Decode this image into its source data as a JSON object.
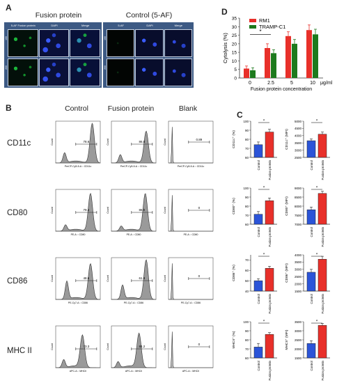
{
  "panel_a": {
    "letter": "A",
    "fusion_title": "Fusion protein",
    "control_title": "Control (5-AF)",
    "fusion_headers": [
      "5-AF Fusion protein",
      "DAPI",
      "Merge"
    ],
    "control_headers": [
      "5-AF",
      "DAPI",
      "Merge"
    ],
    "row_labels": [
      "100",
      "200"
    ]
  },
  "panel_b": {
    "letter": "B",
    "col_titles": [
      "Control",
      "Fusion protein",
      "Blank"
    ],
    "rows": [
      {
        "label": "CD11c",
        "xlabel": "PerCP-Cy5-5-A :: CD11c",
        "values": [
          "78.6",
          "86.5",
          "0.89"
        ]
      },
      {
        "label": "CD80",
        "xlabel": "PE-A :: CD80",
        "values": [
          "79.4",
          "88.0",
          "0"
        ]
      },
      {
        "label": "CD86",
        "xlabel": "PE-Cy7-A :: CD86",
        "values": [
          "48.6",
          "61.9",
          "0"
        ]
      },
      {
        "label": "MHC II",
        "xlabel": "APC-A :: MHCII",
        "values": [
          "73.3",
          "84.2",
          "0"
        ]
      }
    ],
    "ylabel": "Count"
  },
  "panel_c": {
    "letter": "C",
    "categories": [
      "Control",
      "Fusion protein"
    ],
    "colors": {
      "control": "#2b54d8",
      "fusion": "#e8302a"
    }
  },
  "panel_d": {
    "letter": "D"
  },
  "chart_data": [
    {
      "type": "bar",
      "categories": [
        "0",
        "2.5",
        "5",
        "10"
      ],
      "series": [
        {
          "name": "RM1",
          "values": [
            5.5,
            17.5,
            24.5,
            28.0
          ],
          "errors": [
            1.5,
            2.5,
            2.5,
            3.0
          ],
          "color": "#e8302a"
        },
        {
          "name": "TRAMP-C1",
          "values": [
            4.5,
            14.5,
            20.0,
            25.5
          ],
          "errors": [
            1.5,
            2.0,
            2.5,
            3.0
          ],
          "color": "#1d7a1d"
        }
      ],
      "ylabel": "Cytolysis (%)",
      "xlabel": "Fusion protein concentration",
      "unit": "μg/ml",
      "ylim": [
        0,
        35
      ],
      "yticks": [
        "0",
        "5",
        "10",
        "15",
        "20",
        "25",
        "30",
        "35"
      ],
      "annotation": "*"
    },
    {
      "type": "bar",
      "categories": [
        "Control",
        "Fusion protein"
      ],
      "values": [
        74,
        88
      ],
      "errors": [
        3,
        3
      ],
      "ylabel": "CD11c⁺ (%)",
      "ylim": [
        60,
        100
      ],
      "yticks": [
        "60",
        "70",
        "80",
        "90",
        "100"
      ],
      "annotation": "*"
    },
    {
      "type": "bar",
      "categories": [
        "Control",
        "Fusion protein"
      ],
      "values": [
        3650,
        4100
      ],
      "errors": [
        120,
        150
      ],
      "ylabel": "CD11c⁺ (MFI)",
      "ylim": [
        2500,
        5000
      ],
      "yticks": [
        "2500",
        "3000",
        "3500",
        "4000",
        "4500",
        "5000"
      ],
      "annotation": "*"
    },
    {
      "type": "bar",
      "categories": [
        "Control",
        "Fusion protein"
      ],
      "values": [
        71,
        86
      ],
      "errors": [
        3,
        3
      ],
      "ylabel": "CD80⁺ (%)",
      "ylim": [
        60,
        100
      ],
      "yticks": [
        "60",
        "70",
        "80",
        "90",
        "100"
      ],
      "annotation": "*"
    },
    {
      "type": "bar",
      "categories": [
        "Control",
        "Fusion protein"
      ],
      "values": [
        7800,
        8700
      ],
      "errors": [
        150,
        120
      ],
      "ylabel": "CD80⁺ (MFI)",
      "ylim": [
        7000,
        9000
      ],
      "yticks": [
        "7000",
        "7500",
        "8000",
        "8500",
        "9000"
      ],
      "annotation": "*"
    },
    {
      "type": "bar",
      "categories": [
        "Control",
        "Fusion protein"
      ],
      "values": [
        50,
        62
      ],
      "errors": [
        2,
        2
      ],
      "ylabel": "CD86⁺ (%)",
      "ylim": [
        40,
        75
      ],
      "yticks": [
        "40",
        "50",
        "60",
        "70"
      ],
      "annotation": "*"
    },
    {
      "type": "bar",
      "categories": [
        "Control",
        "Fusion protein"
      ],
      "values": [
        2800,
        3700
      ],
      "errors": [
        200,
        200
      ],
      "ylabel": "CD86⁺ (MFI)",
      "ylim": [
        1500,
        4000
      ],
      "yticks": [
        "1500",
        "2000",
        "2500",
        "3000",
        "3500",
        "4000"
      ],
      "annotation": "*"
    },
    {
      "type": "bar",
      "categories": [
        "Control",
        "Fusion protein"
      ],
      "values": [
        72,
        86
      ],
      "errors": [
        4,
        2
      ],
      "ylabel": "MHCII⁺ (%)",
      "ylim": [
        60,
        100
      ],
      "yticks": [
        "60",
        "70",
        "80",
        "90",
        "100"
      ],
      "annotation": "*"
    },
    {
      "type": "bar",
      "categories": [
        "Control",
        "Fusion protein"
      ],
      "values": [
        2300,
        3300
      ],
      "errors": [
        150,
        100
      ],
      "ylabel": "MHCII⁺ (MFI)",
      "ylim": [
        1500,
        3500
      ],
      "yticks": [
        "1500",
        "2000",
        "2500",
        "3000",
        "3500"
      ],
      "annotation": "*"
    }
  ]
}
